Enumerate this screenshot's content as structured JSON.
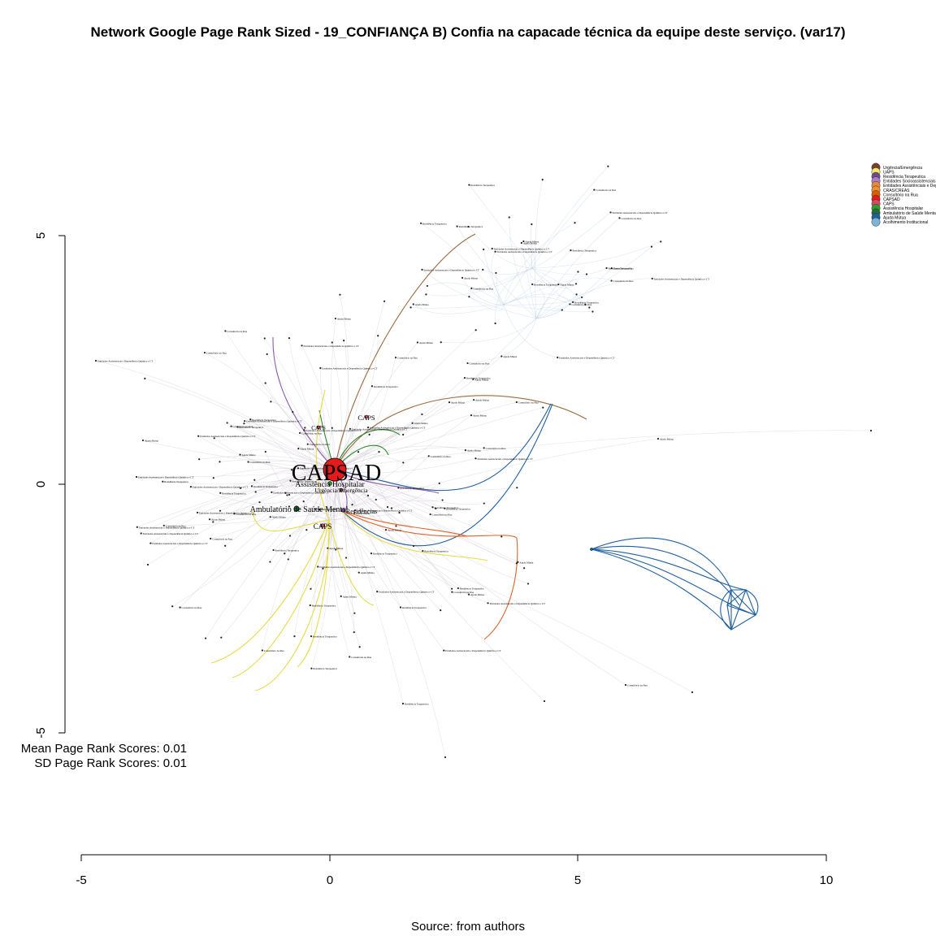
{
  "title": "Network Google Page Rank Sized - 19_CONFIANÇA B) Confia na capacade técnica da equipe deste serviço. (var17)",
  "stats": {
    "mean": "Mean Page Rank Scores: 0.01",
    "sd": "SD Page Rank Scores: 0.01"
  },
  "source": "Source: from authors",
  "axes": {
    "x_ticks": [
      "-5",
      "0",
      "5",
      "10"
    ],
    "y_ticks": [
      "5",
      "0",
      "-5"
    ]
  },
  "legend": [
    {
      "label": "Urgência/Emergência",
      "color": "#7b3f2a"
    },
    {
      "label": "UAPS",
      "color": "#f5e96b"
    },
    {
      "label": "Residência Terapeutica",
      "color": "#6d4b8f"
    },
    {
      "label": "Entidades Socioassistenciais",
      "color": "#b07cc6"
    },
    {
      "label": "Entidades Assistênciais e Dep",
      "color": "#e68a3c"
    },
    {
      "label": "CRAS/CREAS",
      "color": "#f28e2b"
    },
    {
      "label": "Consultório na Rua",
      "color": "#d95f02"
    },
    {
      "label": "CAPSAD",
      "color": "#e41a1c"
    },
    {
      "label": "CAPS",
      "color": "#d94865"
    },
    {
      "label": "Assistência Hospitalar",
      "color": "#2ca02c"
    },
    {
      "label": "Ambulatório de Saúde Mental",
      "color": "#1f6f3a"
    },
    {
      "label": "Ajuda Mútua",
      "color": "#1f5fa0"
    },
    {
      "label": "Acolhimento Institucional",
      "color": "#7fb3d5"
    }
  ],
  "nodes": {
    "hub": {
      "label": "CAPSAD",
      "color": "#e41a1c"
    },
    "big_labels": [
      "Ambulatório de Saúde Mental",
      "Assistência Hospitalar",
      "Urgência/Emergência",
      "Residências",
      "CAPS",
      "CAPS",
      "CAPS"
    ],
    "small_labels": [
      "Entidades Assistenciais e Dependência Química e CT",
      "Assistência Hospitalar",
      "Ajuda Mútua",
      "CRAS/CREAS",
      "Residência Terapeutica",
      "UAPS",
      "Consultório na Rua",
      "Entidades Socioassistenciais"
    ]
  },
  "colors": {
    "edge_faint": "#c9c2cf",
    "edge_blue": "#1f5fa0",
    "edge_brown": "#9b6a3f",
    "edge_purple": "#8c5ab0",
    "edge_green": "#2b8a2b",
    "edge_yellow": "#e8dc4a",
    "edge_orange": "#e0642a",
    "edge_lightblue": "#b9cde3"
  }
}
